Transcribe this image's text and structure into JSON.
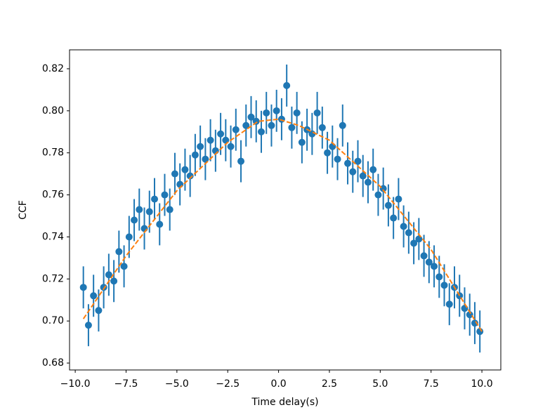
{
  "chart_data": {
    "type": "errorbar",
    "xlabel": "Time delay(s)",
    "ylabel": "CCF",
    "xlim": [
      -10.28,
      10.93
    ],
    "ylim": [
      0.6767,
      0.829
    ],
    "xticks": [
      {
        "value": -10,
        "label": "−10.0"
      },
      {
        "value": -7.5,
        "label": "−7.5"
      },
      {
        "value": -5,
        "label": "−5.0"
      },
      {
        "value": -2.5,
        "label": "−2.5"
      },
      {
        "value": 0,
        "label": "0.0"
      },
      2.5,
      {
        "value": 5,
        "label": "5.0"
      },
      7.5,
      {
        "value": 10,
        "label": "10.0"
      }
    ],
    "yticks": [
      0.68,
      {
        "value": 0.7,
        "label": "0.70"
      },
      0.72,
      0.74,
      0.76,
      0.78,
      {
        "value": 0.8,
        "label": "0.80"
      },
      0.82
    ],
    "series": [
      {
        "color": "#1f77b4",
        "yerr": 0.01,
        "x": [
          -9.6,
          -9.35,
          -9.1,
          -8.85,
          -8.6,
          -8.35,
          -8.1,
          -7.85,
          -7.6,
          -7.35,
          -7.1,
          -6.85,
          -6.6,
          -6.35,
          -6.1,
          -5.85,
          -5.6,
          -5.35,
          -5.1,
          -4.85,
          -4.6,
          -4.35,
          -4.1,
          -3.85,
          -3.6,
          -3.35,
          -3.1,
          -2.85,
          -2.6,
          -2.35,
          -2.1,
          -1.85,
          -1.6,
          -1.35,
          -1.1,
          -0.85,
          -0.6,
          -0.35,
          -0.1,
          0.15,
          0.4,
          0.65,
          0.9,
          1.15,
          1.4,
          1.65,
          1.9,
          2.15,
          2.4,
          2.65,
          2.9,
          3.15,
          3.4,
          3.65,
          3.9,
          4.15,
          4.4,
          4.65,
          4.9,
          5.15,
          5.4,
          5.65,
          5.9,
          6.15,
          6.4,
          6.65,
          6.9,
          7.15,
          7.4,
          7.65,
          7.9,
          8.15,
          8.4,
          8.65,
          8.9,
          9.15,
          9.4,
          9.65,
          9.9
        ],
        "values": [
          0.716,
          0.698,
          0.712,
          0.705,
          0.716,
          0.722,
          0.719,
          0.733,
          0.726,
          0.74,
          0.748,
          0.753,
          0.744,
          0.752,
          0.758,
          0.746,
          0.76,
          0.753,
          0.77,
          0.765,
          0.772,
          0.769,
          0.779,
          0.783,
          0.777,
          0.786,
          0.781,
          0.789,
          0.786,
          0.783,
          0.791,
          0.776,
          0.793,
          0.797,
          0.795,
          0.79,
          0.799,
          0.793,
          0.8,
          0.796,
          0.812,
          0.792,
          0.799,
          0.785,
          0.791,
          0.789,
          0.799,
          0.792,
          0.78,
          0.783,
          0.777,
          0.793,
          0.775,
          0.771,
          0.776,
          0.769,
          0.766,
          0.772,
          0.76,
          0.763,
          0.755,
          0.749,
          0.758,
          0.745,
          0.742,
          0.737,
          0.739,
          0.731,
          0.728,
          0.726,
          0.721,
          0.717,
          0.708,
          0.716,
          0.712,
          0.706,
          0.703,
          0.699,
          0.695
        ]
      },
      {
        "color": "#ff7f0e",
        "dashed": true,
        "x": [
          -9.6,
          -7.5,
          -5,
          -2.5,
          -1,
          0,
          1,
          2.5,
          5,
          7.5,
          10
        ],
        "values": [
          0.701,
          0.731,
          0.762,
          0.785,
          0.795,
          0.796,
          0.793,
          0.786,
          0.764,
          0.734,
          0.695
        ]
      }
    ]
  }
}
